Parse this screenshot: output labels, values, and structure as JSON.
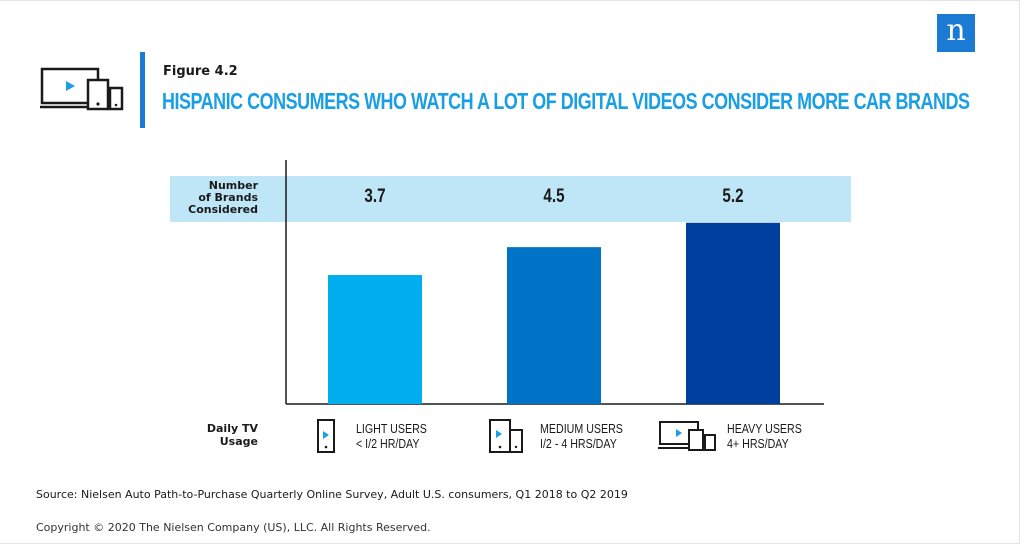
{
  "brand": {
    "logo_letter": "n",
    "logo_color": "#1a7ad4"
  },
  "figure": {
    "label": "Figure 4.2",
    "title": "HISPANIC CONSUMERS WHO WATCH A LOT OF DIGITAL VIDEOS CONSIDER MORE CAR BRANDS",
    "title_color": "#1a9ee4"
  },
  "band": {
    "label_lines": [
      "Number",
      "of Brands",
      "Considered"
    ],
    "color": "#bfe6f7"
  },
  "usage_label_lines": [
    "Daily TV",
    "Usage"
  ],
  "categories": [
    {
      "line1": "LIGHT USERS",
      "line2": "< I/2 HR/DAY",
      "icon": "phone-icon"
    },
    {
      "line1": "MEDIUM USERS",
      "line2": "I/2 - 4 HRS/DAY",
      "icon": "phone-tablet-icon"
    },
    {
      "line1": "HEAVY USERS",
      "line2": "4+ HRS/DAY",
      "icon": "tv-tablet-phone-icon"
    }
  ],
  "chart_data": {
    "type": "bar",
    "categories": [
      "LIGHT USERS",
      "MEDIUM USERS",
      "HEAVY USERS"
    ],
    "values": [
      3.7,
      4.5,
      5.2
    ],
    "value_labels": [
      "3.7",
      "4.5",
      "5.2"
    ],
    "colors": [
      "#00aeef",
      "#0073c6",
      "#003f9e"
    ],
    "ylim": [
      0,
      7
    ],
    "grid": false,
    "legend": "none"
  },
  "footer": {
    "source": "Source: Nielsen Auto Path-to-Purchase Quarterly Online Survey, Adult U.S. consumers, Q1 2018 to Q2 2019",
    "copyright": "Copyright © 2020 The Nielsen Company (US), LLC. All Rights Reserved."
  }
}
